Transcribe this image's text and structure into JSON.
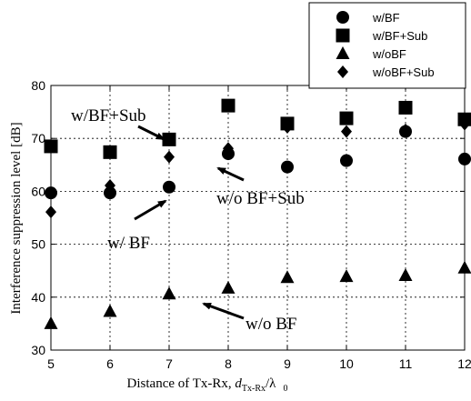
{
  "chart_data": {
    "type": "scatter",
    "xlabel_prefix": "Distance of Tx-Rx, ",
    "xlabel_var": "d",
    "xlabel_sub": "Tx-Rx",
    "xlabel_mid": "/λ",
    "xlabel_sub2": "0",
    "ylabel": "Interference suppression level [dB]",
    "xlim": [
      5,
      12
    ],
    "ylim": [
      30,
      80
    ],
    "x_ticks": [
      "5",
      "6",
      "7",
      "8",
      "9",
      "10",
      "11",
      "12"
    ],
    "y_ticks": [
      "30",
      "40",
      "50",
      "60",
      "70",
      "80"
    ],
    "grid": "dashed",
    "legend_position": "top-right",
    "series": [
      {
        "name": "w/BF",
        "marker": "circle",
        "x": [
          5,
          6,
          7,
          8,
          9,
          10,
          11,
          12
        ],
        "y": [
          59.7,
          59.7,
          60.8,
          67.1,
          64.6,
          65.8,
          71.3,
          66.1
        ]
      },
      {
        "name": "w/BF+Sub",
        "marker": "square",
        "x": [
          5,
          6,
          7,
          8,
          9,
          10,
          11,
          12
        ],
        "y": [
          68.5,
          67.4,
          69.8,
          76.2,
          72.8,
          73.8,
          75.8,
          73.6
        ]
      },
      {
        "name": "w/oBF",
        "marker": "triangle",
        "x": [
          5,
          6,
          7,
          8,
          9,
          10,
          11,
          12
        ],
        "y": [
          35.0,
          37.3,
          40.6,
          41.7,
          43.7,
          43.9,
          44.1,
          45.5
        ]
      },
      {
        "name": "w/oBF+Sub",
        "marker": "diamond",
        "x": [
          5,
          6,
          7,
          8,
          9,
          10,
          11,
          12
        ],
        "y": [
          56.1,
          61.1,
          66.5,
          68.1,
          72.1,
          71.3,
          71.6,
          72.7
        ]
      }
    ],
    "annotations": [
      {
        "text": "w/BF+Sub",
        "points_to": [
          7,
          69.8
        ]
      },
      {
        "text": "w/ BF",
        "points_to": [
          7,
          60.8
        ]
      },
      {
        "text": "w/o BF+Sub",
        "points_to": [
          7,
          66.5
        ]
      },
      {
        "text": "w/o BF",
        "points_to": [
          7,
          40.6
        ]
      }
    ]
  }
}
